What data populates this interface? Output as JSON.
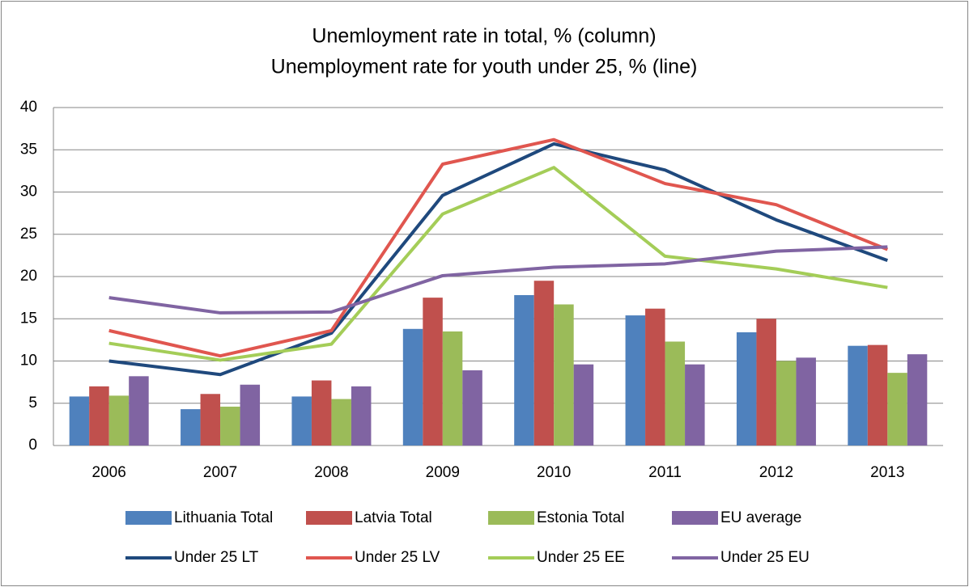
{
  "chart_data": {
    "type": "combo",
    "title": "Unemloyment rate in total, % (column)",
    "subtitle": "Unemployment rate for youth under 25, % (line)",
    "categories": [
      "2006",
      "2007",
      "2008",
      "2009",
      "2010",
      "2011",
      "2012",
      "2013"
    ],
    "ylim": [
      0,
      40
    ],
    "yticks": [
      0,
      5,
      10,
      15,
      20,
      25,
      30,
      35,
      40
    ],
    "grid": true,
    "series": [
      {
        "name": "Lithuania Total",
        "type": "bar",
        "color": "#4f81bd",
        "values": [
          5.8,
          4.3,
          5.8,
          13.8,
          17.8,
          15.4,
          13.4,
          11.8
        ]
      },
      {
        "name": "Latvia Total",
        "type": "bar",
        "color": "#c0504d",
        "values": [
          7.0,
          6.1,
          7.7,
          17.5,
          19.5,
          16.2,
          15.0,
          11.9
        ]
      },
      {
        "name": "Estonia Total",
        "type": "bar",
        "color": "#9bbb59",
        "values": [
          5.9,
          4.6,
          5.5,
          13.5,
          16.7,
          12.3,
          10.0,
          8.6
        ]
      },
      {
        "name": "EU average",
        "type": "bar",
        "color": "#8064a2",
        "values": [
          8.2,
          7.2,
          7.0,
          8.9,
          9.6,
          9.6,
          10.4,
          10.8
        ]
      },
      {
        "name": "Under 25 LT",
        "type": "line",
        "color": "#1f497d",
        "values": [
          10.0,
          8.4,
          13.3,
          29.6,
          35.7,
          32.6,
          26.7,
          21.9
        ]
      },
      {
        "name": "Under 25 LV",
        "type": "line",
        "color": "#e0564f",
        "values": [
          13.6,
          10.6,
          13.6,
          33.3,
          36.2,
          31.0,
          28.5,
          23.2
        ]
      },
      {
        "name": "Under 25 EE",
        "type": "line",
        "color": "#a4cd58",
        "values": [
          12.1,
          10.1,
          12.0,
          27.4,
          32.9,
          22.4,
          20.9,
          18.7
        ]
      },
      {
        "name": "Under 25 EU",
        "type": "line",
        "color": "#8064a2",
        "values": [
          17.5,
          15.7,
          15.8,
          20.1,
          21.1,
          21.5,
          23.0,
          23.5
        ]
      }
    ]
  }
}
